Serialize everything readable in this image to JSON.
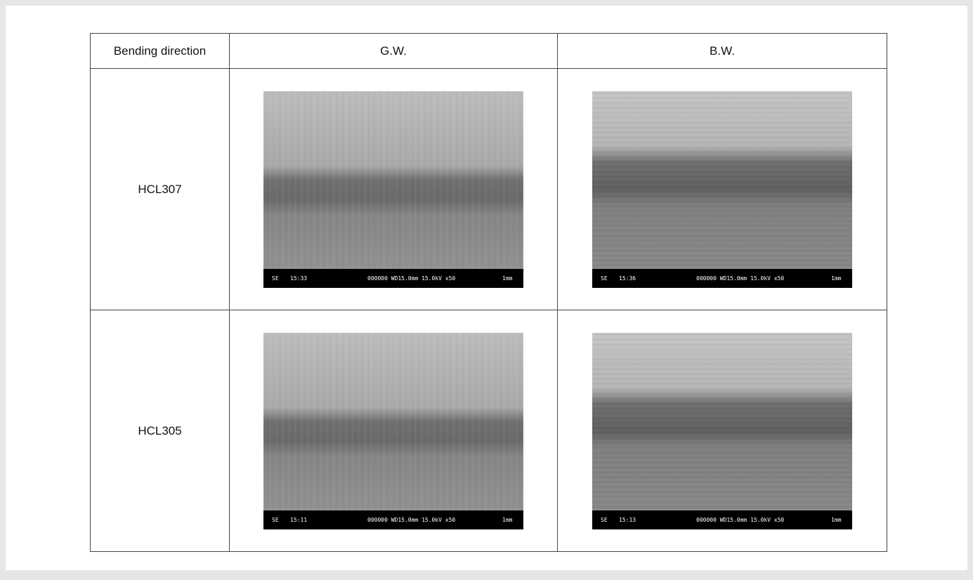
{
  "table": {
    "header": [
      "Bending direction",
      "G.W.",
      "B.W."
    ],
    "rows": [
      {
        "label": "HCL307",
        "images": [
          {
            "mode": "SE",
            "time": "15:33",
            "params": "000000 WD15.0mm 15.0kV x50",
            "scale": "1mm"
          },
          {
            "mode": "SE",
            "time": "15:36",
            "params": "000000 WD15.0mm 15.0kV x50",
            "scale": "1mm"
          }
        ]
      },
      {
        "label": "HCL305",
        "images": [
          {
            "mode": "SE",
            "time": "15:11",
            "params": "000000 WD15.0mm 15.0kV x50",
            "scale": "1mm"
          },
          {
            "mode": "SE",
            "time": "15:13",
            "params": "000000 WD15.0mm 15.0kV x50",
            "scale": "1mm"
          }
        ]
      }
    ]
  }
}
